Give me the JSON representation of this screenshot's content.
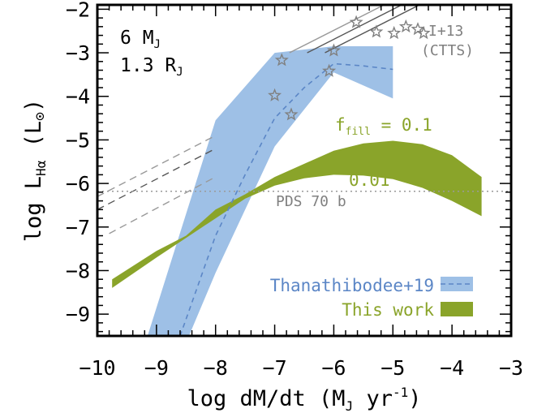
{
  "chart_data": {
    "type": "line",
    "xlabel": "log dM/dt (M",
    "xlabel_sub": "J",
    "xlabel_tail": " yr",
    "xlabel_sup": "-1",
    "xlabel_end": ")",
    "ylabel": "log L",
    "ylabel_sub": "Hα",
    "ylabel_tail": " (L",
    "ylabel_sym": "⊙",
    "ylabel_end": ")",
    "xlim": [
      -10,
      -3
    ],
    "ylim": [
      -9.5,
      -1.9
    ],
    "xticks": [
      -10,
      -9,
      -8,
      -7,
      -6,
      -5,
      -4,
      -3
    ],
    "xtick_labels": [
      "−10",
      "−9",
      "−8",
      "−7",
      "−6",
      "−5",
      "−4",
      "−3"
    ],
    "yticks": [
      -9,
      -8,
      -7,
      -6,
      -5,
      -4,
      -3,
      -2
    ],
    "ytick_labels": [
      "−9",
      "−8",
      "−7",
      "−6",
      "−5",
      "−4",
      "−3",
      "−2"
    ],
    "planet_mass_label": "6 M",
    "planet_mass_sub": "J",
    "planet_radius_label": "1.3 R",
    "planet_radius_sub": "J",
    "colors": {
      "thanathibodee": "#5b86c6",
      "thanathibodee_band": "#9ec0e6",
      "this_work": "#8aa42a",
      "this_work_band": "#8aa42a",
      "ctts": "#808080",
      "pds70": "#9a9a9a"
    },
    "series": [
      {
        "name": "Thanathibodee+19",
        "kind": "band_with_dashed_line",
        "upper": [
          [
            -9.15,
            -9.5
          ],
          [
            -8.0,
            -4.55
          ],
          [
            -7.0,
            -3.0
          ],
          [
            -6.0,
            -2.85
          ],
          [
            -5.0,
            -2.85
          ]
        ],
        "lower": [
          [
            -5.0,
            -4.05
          ],
          [
            -6.0,
            -3.45
          ],
          [
            -7.0,
            -5.15
          ],
          [
            -8.0,
            -8.05
          ],
          [
            -8.45,
            -9.5
          ]
        ],
        "line": [
          [
            -8.6,
            -9.5
          ],
          [
            -8.0,
            -7.2
          ],
          [
            -7.5,
            -5.8
          ],
          [
            -7.0,
            -4.5
          ],
          [
            -6.5,
            -3.8
          ],
          [
            -6.0,
            -3.25
          ],
          [
            -5.5,
            -3.3
          ],
          [
            -5.0,
            -3.38
          ]
        ]
      },
      {
        "name": "This work",
        "kind": "band",
        "label_upper": "f",
        "label_upper_sub": "fill",
        "label_upper_value": " = 0.1",
        "label_lower": "0.01",
        "upper": [
          [
            -9.75,
            -8.2
          ],
          [
            -9.0,
            -7.55
          ],
          [
            -8.5,
            -7.2
          ],
          [
            -8.0,
            -6.6
          ],
          [
            -7.5,
            -6.25
          ],
          [
            -7.0,
            -5.85
          ],
          [
            -6.5,
            -5.55
          ],
          [
            -6.0,
            -5.25
          ],
          [
            -5.5,
            -5.08
          ],
          [
            -5.0,
            -5.02
          ],
          [
            -4.5,
            -5.1
          ],
          [
            -4.0,
            -5.35
          ],
          [
            -3.5,
            -5.85
          ]
        ],
        "lower": [
          [
            -3.5,
            -6.75
          ],
          [
            -4.0,
            -6.4
          ],
          [
            -4.5,
            -6.1
          ],
          [
            -5.0,
            -5.9
          ],
          [
            -5.5,
            -5.82
          ],
          [
            -6.0,
            -5.8
          ],
          [
            -6.5,
            -5.88
          ],
          [
            -7.0,
            -6.05
          ],
          [
            -7.5,
            -6.35
          ],
          [
            -8.0,
            -6.8
          ],
          [
            -8.5,
            -7.25
          ],
          [
            -9.0,
            -7.7
          ],
          [
            -9.75,
            -8.4
          ]
        ]
      }
    ],
    "ctts": {
      "label": "I+13",
      "label2": "(CTTS)",
      "stars": [
        [
          -7.0,
          -3.98
        ],
        [
          -6.88,
          -3.17
        ],
        [
          -6.72,
          -4.42
        ],
        [
          -6.08,
          -3.42
        ],
        [
          -6.0,
          -2.95
        ],
        [
          -5.62,
          -2.3
        ],
        [
          -5.28,
          -2.52
        ],
        [
          -4.98,
          -2.55
        ],
        [
          -4.78,
          -2.4
        ],
        [
          -4.48,
          -2.55
        ]
      ],
      "lines": [
        {
          "color": "#555555",
          "dash": "solid",
          "x0": -6.45,
          "y0": -3.0,
          "x1": -4.85,
          "y1": -1.9
        },
        {
          "color": "#555555",
          "dash": "solid",
          "x0": -6.15,
          "y0": -3.0,
          "x1": -4.55,
          "y1": -1.9
        },
        {
          "color": "#999999",
          "dash": "solid",
          "x0": -6.75,
          "y0": -3.0,
          "x1": -5.15,
          "y1": -1.9
        }
      ],
      "dashed_lines": [
        {
          "color": "#999999",
          "x0": -10.0,
          "y0": -6.3,
          "x1": -8.0,
          "y1": -4.9
        },
        {
          "color": "#555555",
          "x0": -10.0,
          "y0": -6.6,
          "x1": -8.0,
          "y1": -5.2
        },
        {
          "color": "#999999",
          "x0": -9.8,
          "y0": -7.15,
          "x1": -8.0,
          "y1": -5.85
        }
      ]
    },
    "pds70": {
      "label": "PDS 70 b",
      "y": -6.18
    },
    "legend": {
      "placement": "bottom-right",
      "items": [
        "Thanathibodee+19",
        "This work"
      ]
    }
  }
}
